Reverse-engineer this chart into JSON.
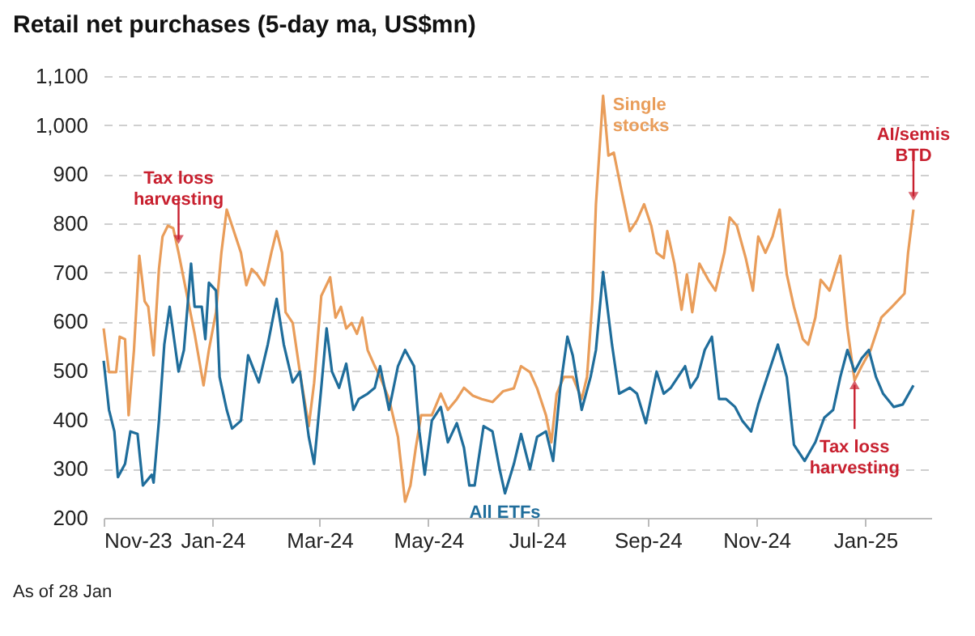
{
  "chart_data": {
    "type": "line",
    "title": "Retail net purchases (5-day ma, US$mn)",
    "xlim": [
      "2023-11-01",
      "2025-02-07"
    ],
    "xticks": [
      {
        "value": "2023-11-01",
        "label": "Nov-23"
      },
      {
        "value": "2024-01-01",
        "label": "Jan-24"
      },
      {
        "value": "2024-03-01",
        "label": "Mar-24"
      },
      {
        "value": "2024-05-01",
        "label": "May-24"
      },
      {
        "value": "2024-07-01",
        "label": "Jul-24"
      },
      {
        "value": "2024-09-01",
        "label": "Sep-24"
      },
      {
        "value": "2024-11-01",
        "label": "Nov-24"
      },
      {
        "value": "2025-01-01",
        "label": "Jan-25"
      }
    ],
    "ylim": [
      200,
      1100
    ],
    "yticks": [
      200,
      300,
      400,
      500,
      600,
      700,
      800,
      900,
      {
        "value": 1000,
        "label": "1,000"
      },
      {
        "value": 1100,
        "label": "1,100"
      }
    ],
    "grid": "y",
    "line_style": "solid",
    "marker": "none",
    "series": [
      {
        "name": "Single\nstocks",
        "color": "#e99d5a",
        "x": [
          "2023-11-01",
          "2023-11-04",
          "2023-11-08",
          "2023-11-10",
          "2023-11-13",
          "2023-11-15",
          "2023-11-18",
          "2023-11-21",
          "2023-11-24",
          "2023-11-26",
          "2023-11-29",
          "2023-12-02",
          "2023-12-04",
          "2023-12-07",
          "2023-12-10",
          "2023-12-13",
          "2023-12-22",
          "2023-12-27",
          "2023-12-30",
          "2024-01-03",
          "2024-01-06",
          "2024-01-09",
          "2024-01-12",
          "2024-01-17",
          "2024-01-20",
          "2024-01-23",
          "2024-01-26",
          "2024-01-30",
          "2024-02-03",
          "2024-02-06",
          "2024-02-09",
          "2024-02-11",
          "2024-02-15",
          "2024-02-19",
          "2024-02-24",
          "2024-02-27",
          "2024-03-02",
          "2024-03-07",
          "2024-03-10",
          "2024-03-13",
          "2024-03-16",
          "2024-03-19",
          "2024-03-22",
          "2024-03-25",
          "2024-03-28",
          "2024-04-01",
          "2024-04-04",
          "2024-04-09",
          "2024-04-14",
          "2024-04-18",
          "2024-04-21",
          "2024-04-24",
          "2024-04-27",
          "2024-05-03",
          "2024-05-08",
          "2024-05-12",
          "2024-05-17",
          "2024-05-21",
          "2024-05-26",
          "2024-05-31",
          "2024-06-06",
          "2024-06-12",
          "2024-06-18",
          "2024-06-22",
          "2024-06-27",
          "2024-07-01",
          "2024-07-06",
          "2024-07-09",
          "2024-07-12",
          "2024-07-16",
          "2024-07-21",
          "2024-07-26",
          "2024-07-29",
          "2024-08-01",
          "2024-08-03",
          "2024-08-07",
          "2024-08-10",
          "2024-08-13",
          "2024-08-17",
          "2024-08-22",
          "2024-08-26",
          "2024-08-30",
          "2024-09-03",
          "2024-09-06",
          "2024-09-10",
          "2024-09-12",
          "2024-09-16",
          "2024-09-20",
          "2024-09-23",
          "2024-09-26",
          "2024-09-30",
          "2024-10-05",
          "2024-10-09",
          "2024-10-14",
          "2024-10-17",
          "2024-10-21",
          "2024-10-26",
          "2024-10-30",
          "2024-11-02",
          "2024-11-06",
          "2024-11-10",
          "2024-11-14",
          "2024-11-18",
          "2024-11-22",
          "2024-11-27",
          "2024-11-30",
          "2024-12-04",
          "2024-12-07",
          "2024-12-12",
          "2024-12-18",
          "2024-12-22",
          "2024-12-26",
          "2024-12-30",
          "2025-01-04",
          "2025-01-10",
          "2025-01-16",
          "2025-01-23",
          "2025-01-25",
          "2025-01-28"
        ],
        "values": [
          586,
          497,
          497,
          569,
          564,
          409,
          542,
          734,
          641,
          630,
          531,
          707,
          773,
          795,
          790,
          740,
          575,
          470,
          542,
          619,
          740,
          828,
          795,
          740,
          674,
          707,
          696,
          674,
          740,
          784,
          740,
          619,
          597,
          497,
          387,
          475,
          652,
          690,
          608,
          630,
          586,
          597,
          575,
          608,
          542,
          509,
          487,
          442,
          365,
          233,
          266,
          343,
          409,
          409,
          453,
          420,
          442,
          465,
          449,
          442,
          436,
          458,
          464,
          509,
          497,
          464,
          409,
          354,
          453,
          487,
          487,
          442,
          487,
          641,
          839,
          1060,
          938,
          944,
          872,
          784,
          806,
          839,
          795,
          740,
          729,
          784,
          718,
          624,
          696,
          619,
          718,
          685,
          663,
          740,
          812,
          795,
          729,
          663,
          773,
          740,
          773,
          828,
          696,
          630,
          564,
          553,
          608,
          685,
          663,
          734,
          586,
          480,
          509,
          542,
          608,
          630,
          657,
          740,
          828
        ]
      },
      {
        "name": "All ETFs",
        "color": "#1f6d9b",
        "x": [
          "2023-11-01",
          "2023-11-04",
          "2023-11-07",
          "2023-11-09",
          "2023-11-13",
          "2023-11-16",
          "2023-11-20",
          "2023-11-23",
          "2023-11-28",
          "2023-11-29",
          "2023-12-02",
          "2023-12-05",
          "2023-12-08",
          "2023-12-13",
          "2023-12-16",
          "2023-12-20",
          "2023-12-22",
          "2023-12-26",
          "2023-12-28",
          "2023-12-30",
          "2024-01-03",
          "2024-01-05",
          "2024-01-09",
          "2024-01-12",
          "2024-01-17",
          "2024-01-21",
          "2024-01-27",
          "2024-02-01",
          "2024-02-06",
          "2024-02-10",
          "2024-02-15",
          "2024-02-19",
          "2024-02-24",
          "2024-02-27",
          "2024-03-02",
          "2024-03-05",
          "2024-03-08",
          "2024-03-12",
          "2024-03-16",
          "2024-03-20",
          "2024-03-23",
          "2024-03-28",
          "2024-04-01",
          "2024-04-04",
          "2024-04-09",
          "2024-04-14",
          "2024-04-18",
          "2024-04-23",
          "2024-04-26",
          "2024-04-29",
          "2024-05-03",
          "2024-05-08",
          "2024-05-12",
          "2024-05-17",
          "2024-05-21",
          "2024-05-24",
          "2024-05-27",
          "2024-06-01",
          "2024-06-06",
          "2024-06-10",
          "2024-06-13",
          "2024-06-18",
          "2024-06-22",
          "2024-06-27",
          "2024-07-01",
          "2024-07-06",
          "2024-07-10",
          "2024-07-14",
          "2024-07-18",
          "2024-07-21",
          "2024-07-26",
          "2024-07-31",
          "2024-08-03",
          "2024-08-07",
          "2024-08-12",
          "2024-08-16",
          "2024-08-22",
          "2024-08-26",
          "2024-08-31",
          "2024-09-06",
          "2024-09-10",
          "2024-09-14",
          "2024-09-18",
          "2024-09-22",
          "2024-09-25",
          "2024-09-29",
          "2024-10-03",
          "2024-10-07",
          "2024-10-11",
          "2024-10-15",
          "2024-10-20",
          "2024-10-24",
          "2024-10-29",
          "2024-11-02",
          "2024-11-07",
          "2024-11-13",
          "2024-11-18",
          "2024-11-22",
          "2024-11-28",
          "2024-12-04",
          "2024-12-09",
          "2024-12-14",
          "2024-12-18",
          "2024-12-22",
          "2024-12-26",
          "2024-12-30",
          "2025-01-03",
          "2025-01-07",
          "2025-01-11",
          "2025-01-17",
          "2025-01-22",
          "2025-01-28"
        ],
        "values": [
          520,
          420,
          376,
          283,
          310,
          376,
          371,
          266,
          288,
          272,
          398,
          553,
          630,
          498,
          542,
          718,
          630,
          630,
          564,
          679,
          663,
          487,
          420,
          382,
          398,
          531,
          476,
          553,
          646,
          553,
          476,
          498,
          365,
          310,
          465,
          586,
          498,
          465,
          514,
          420,
          442,
          453,
          465,
          509,
          420,
          509,
          542,
          509,
          376,
          288,
          398,
          426,
          354,
          393,
          343,
          266,
          266,
          387,
          376,
          299,
          250,
          310,
          371,
          299,
          365,
          376,
          316,
          465,
          569,
          531,
          420,
          487,
          542,
          701,
          553,
          453,
          465,
          453,
          393,
          498,
          453,
          465,
          487,
          509,
          465,
          487,
          542,
          569,
          442,
          442,
          426,
          398,
          376,
          431,
          487,
          553,
          487,
          349,
          316,
          354,
          404,
          420,
          487,
          542,
          498,
          525,
          542,
          487,
          453,
          426,
          431,
          470
        ]
      }
    ],
    "annotations": [
      {
        "text": "Tax loss\nharvesting",
        "x": "2023-12-13",
        "y": 740
      },
      {
        "text": "AI/semis\nBTD",
        "x": "2025-01-28",
        "y": 828
      },
      {
        "text": "Tax loss\nharvesting",
        "x": "2024-12-26",
        "y": 498
      },
      "As of 28 Jan"
    ]
  }
}
